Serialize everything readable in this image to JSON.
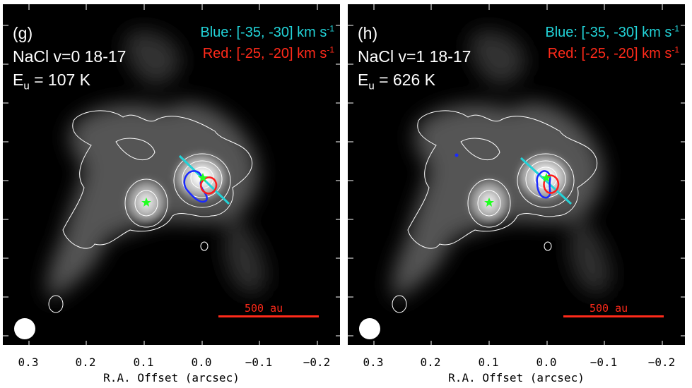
{
  "panels": [
    {
      "id": "g",
      "label": "(g)",
      "line": "NaCl v=0 18-17",
      "energy_prefix": "E",
      "energy_sub": "u",
      "energy_value": " = 107 K",
      "blue_text": "Blue: [-35, -30] km s",
      "blue_sup": "-1",
      "red_text": "Red: [-25, -20] km s",
      "red_sup": "-1",
      "scale": "500 au"
    },
    {
      "id": "h",
      "label": "(h)",
      "line": "NaCl v=1 18-17",
      "energy_prefix": "E",
      "energy_sub": "u",
      "energy_value": " = 626 K",
      "blue_text": "Blue: [-35, -30] km s",
      "blue_sup": "-1",
      "red_text": "Red: [-25, -20] km s",
      "red_sup": "-1",
      "scale": "500 au"
    }
  ],
  "xaxis": {
    "label": "R.A. Offset (arcsec)",
    "ticks": [
      "0.3",
      "0.2",
      "0.1",
      "0.0",
      "−0.1",
      "−0.2"
    ]
  },
  "colors": {
    "blue_legend": "#22d3d8",
    "red_legend": "#ff2a1a",
    "star": "#22ff22",
    "blue_contour": "#1a2aff",
    "red_contour": "#ff1a1a"
  }
}
